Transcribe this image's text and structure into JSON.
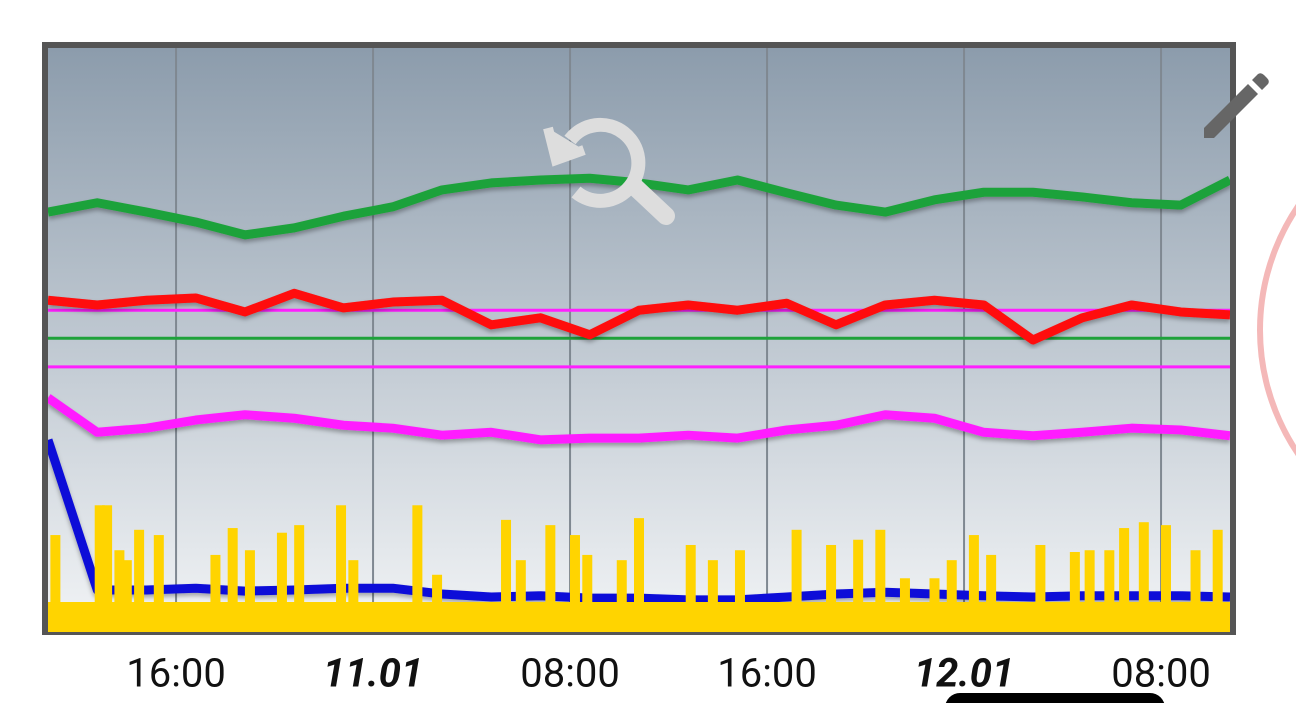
{
  "chart_data": {
    "type": "line",
    "x": [
      0,
      2,
      4,
      6,
      8,
      10,
      12,
      14,
      16,
      18,
      20,
      22,
      24,
      26,
      28,
      30,
      32,
      34,
      36,
      38,
      40,
      42,
      44,
      46,
      48
    ],
    "xlim": [
      0,
      48
    ],
    "ylim": [
      0,
      100
    ],
    "xticks": [
      {
        "value": 5.2,
        "label": "16:00"
      },
      {
        "value": 13.2,
        "label": "11.01",
        "bold": true
      },
      {
        "value": 21.2,
        "label": "08:00"
      },
      {
        "value": 29.2,
        "label": "16:00"
      },
      {
        "value": 37.2,
        "label": "12.01",
        "bold": true
      },
      {
        "value": 45.2,
        "label": "08:00"
      }
    ],
    "grid": true,
    "series": [
      {
        "color": "#1fa23a",
        "values": [
          71.9,
          73.5,
          71.9,
          70.2,
          68.0,
          69.2,
          71.2,
          72.8,
          75.7,
          76.9,
          77.4,
          77.7,
          76.9,
          75.7,
          77.4,
          75.2,
          73.1,
          71.9,
          74.0,
          75.3,
          75.3,
          74.5,
          73.5,
          73.1,
          77.4
        ]
      },
      {
        "color": "#ff0a0a",
        "values": [
          56.8,
          56.0,
          56.8,
          57.2,
          54.8,
          58.0,
          55.5,
          56.5,
          56.8,
          52.6,
          53.8,
          50.9,
          55.1,
          56.0,
          55.1,
          56.3,
          52.6,
          56.0,
          56.8,
          56.0,
          50.0,
          53.8,
          56.0,
          54.8,
          54.3
        ]
      },
      {
        "color": "#ff1fff",
        "values": [
          40.1,
          34.2,
          34.9,
          36.3,
          37.2,
          36.6,
          35.4,
          34.9,
          33.7,
          34.2,
          32.9,
          33.2,
          33.2,
          33.7,
          33.2,
          34.6,
          35.4,
          37.2,
          36.6,
          34.2,
          33.6,
          34.2,
          34.9,
          34.6,
          33.6
        ]
      },
      {
        "color": "#1010d8",
        "values": [
          32.9,
          7.2,
          7.2,
          7.5,
          7.0,
          7.2,
          7.5,
          7.5,
          6.5,
          6.0,
          6.2,
          5.8,
          5.8,
          5.5,
          5.5,
          6.0,
          6.5,
          6.8,
          6.5,
          6.2,
          6.0,
          6.2,
          6.2,
          6.2,
          6.0
        ]
      }
    ],
    "bars": {
      "color": "#ffd400",
      "x": [
        0.3,
        2.1,
        2.4,
        2.9,
        3.2,
        3.7,
        4.5,
        6.8,
        7.5,
        8.2,
        9.5,
        10.2,
        11.9,
        12.4,
        15.0,
        15.8,
        18.6,
        19.2,
        20.4,
        21.4,
        21.9,
        23.3,
        24.0,
        26.1,
        27.0,
        28.1,
        30.4,
        31.8,
        32.9,
        33.8,
        34.8,
        36.0,
        36.7,
        37.6,
        38.3,
        40.3,
        41.7,
        42.3,
        43.1,
        43.7,
        44.5,
        45.4,
        46.6,
        47.5
      ],
      "values": [
        16.6,
        21.7,
        21.7,
        14.0,
        12.3,
        17.5,
        16.6,
        13.2,
        17.8,
        14.0,
        17.0,
        18.3,
        21.7,
        12.3,
        21.7,
        9.8,
        19.2,
        12.3,
        18.3,
        16.6,
        13.2,
        12.3,
        19.5,
        14.9,
        12.3,
        14.0,
        17.5,
        14.9,
        15.8,
        17.5,
        9.2,
        9.2,
        12.3,
        16.6,
        13.2,
        14.9,
        13.7,
        14.0,
        14.0,
        17.8,
        18.8,
        18.3,
        14.0,
        17.5
      ]
    },
    "hlines": [
      {
        "value": 55.1,
        "color": "#ff1fff"
      },
      {
        "value": 50.3,
        "color": "#1fa23a"
      },
      {
        "value": 45.4,
        "color": "#ff1fff"
      }
    ]
  }
}
